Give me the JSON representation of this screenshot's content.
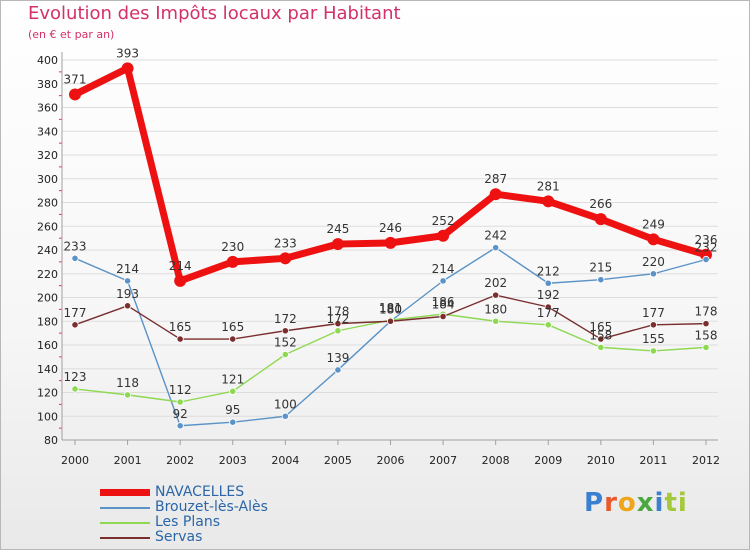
{
  "header": {
    "title": "Evolution des Impôts locaux par Habitant",
    "subtitle": "(en € et par an)"
  },
  "logo": {
    "text": "Proxiti",
    "letters": [
      "P",
      "r",
      "o",
      "x",
      "i",
      "ti"
    ]
  },
  "colors": {
    "axis": "#a0a0a0",
    "grid": "#dddddd",
    "tick_text": "#222222",
    "label_text": "#333333",
    "tick_marks": "#e03060"
  },
  "chart_data": {
    "type": "line",
    "title": "Evolution des Impôts locaux par Habitant",
    "subtitle": "(en € et par an)",
    "xlabel": "",
    "ylabel": "",
    "x": [
      "2000",
      "2001",
      "2002",
      "2003",
      "2004",
      "2005",
      "2006",
      "2007",
      "2008",
      "2009",
      "2010",
      "2011",
      "2012"
    ],
    "ylim": [
      80,
      400
    ],
    "yticks": [
      80,
      100,
      120,
      140,
      160,
      180,
      200,
      220,
      240,
      260,
      280,
      300,
      320,
      340,
      360,
      380,
      400
    ],
    "grid": true,
    "legend_position": "bottom-left",
    "series": [
      {
        "name": "NAVACELLES",
        "color": "#ee1111",
        "width": 7,
        "marker": 6,
        "values": [
          371,
          393,
          214,
          230,
          233,
          245,
          246,
          252,
          287,
          281,
          266,
          249,
          236
        ]
      },
      {
        "name": "Brouzet-lès-Alès",
        "color": "#5b93c7",
        "width": 1.4,
        "marker": 3.2,
        "values": [
          233,
          214,
          92,
          95,
          100,
          139,
          180,
          214,
          242,
          212,
          215,
          220,
          232
        ]
      },
      {
        "name": "Les Plans",
        "color": "#8ed852",
        "width": 1.4,
        "marker": 3.2,
        "values": [
          123,
          118,
          112,
          121,
          152,
          172,
          181,
          186,
          180,
          177,
          158,
          155,
          158
        ]
      },
      {
        "name": "Servas",
        "color": "#7a2e2e",
        "width": 1.4,
        "marker": 3.2,
        "values": [
          177,
          193,
          165,
          165,
          172,
          178,
          180,
          184,
          202,
          192,
          165,
          177,
          178
        ]
      }
    ]
  }
}
